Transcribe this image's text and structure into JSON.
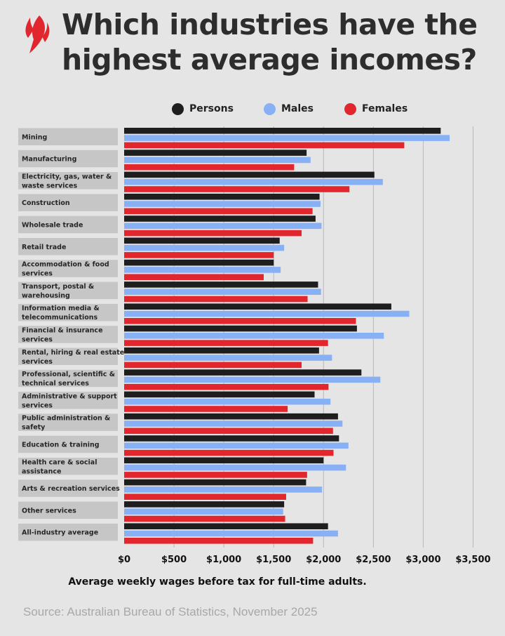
{
  "title": "Which industries have the highest average incomes?",
  "source": "Source: Australian Bureau of Statistics, November 2025",
  "colors": {
    "persons": "#1e1e1f",
    "males": "#88b1f5",
    "females": "#e2262d",
    "category_bg": "#c6c6c7",
    "gridline": "#b8b8ba"
  },
  "logo_icon": "sbs-flame-logo",
  "chart_data": {
    "type": "bar",
    "orientation": "horizontal",
    "title": "Which industries have the highest average incomes?",
    "xlabel": "Average weekly wages before tax for full-time adults.",
    "ylabel": "",
    "xlim": [
      0,
      3500
    ],
    "xticks": [
      0,
      500,
      1000,
      1500,
      2000,
      2500,
      3000,
      3500
    ],
    "xtick_labels": [
      "$0",
      "$500",
      "$1,000",
      "$1,500",
      "$2,000",
      "$2,500",
      "$3,000",
      "$3,500"
    ],
    "grid": true,
    "legend_position": "top",
    "categories": [
      "Mining",
      "Manufacturing",
      "Electricity, gas, water & waste services",
      "Construction",
      "Wholesale trade",
      "Retail trade",
      "Accommodation & food services",
      "Transport, postal & warehousing",
      "Information media & telecommunications",
      "Financial & insurance services",
      "Rental, hiring & real estate services",
      "Professional, scientific & technical services",
      "Administrative & support services",
      "Public administration & safety",
      "Education & training",
      "Health care & social assistance",
      "Arts & recreation services",
      "Other services",
      "All-industry average"
    ],
    "category_lines": [
      [
        "Mining"
      ],
      [
        "Manufacturing"
      ],
      [
        "Electricity, gas, water &",
        "waste services"
      ],
      [
        "Construction"
      ],
      [
        "Wholesale trade"
      ],
      [
        "Retail trade"
      ],
      [
        "Accommodation & food",
        "services"
      ],
      [
        "Transport, postal &",
        "warehousing"
      ],
      [
        "Information media &",
        "telecommunications"
      ],
      [
        "Financial & insurance",
        "services"
      ],
      [
        "Rental, hiring & real estate",
        "services"
      ],
      [
        "Professional, scientific &",
        "technical services"
      ],
      [
        "Administrative & support",
        "services"
      ],
      [
        "Public administration &",
        "safety"
      ],
      [
        "Education & training"
      ],
      [
        "Health care & social",
        "assistance"
      ],
      [
        "Arts & recreation services"
      ],
      [
        "Other services"
      ],
      [
        "All-industry average"
      ]
    ],
    "series": [
      {
        "name": "Persons",
        "color": "#1e1e1f",
        "values": [
          3175,
          1830,
          2510,
          1960,
          1920,
          1560,
          1500,
          1945,
          2680,
          2335,
          1955,
          2380,
          1910,
          2145,
          2155,
          2000,
          1825,
          1605,
          2045
        ]
      },
      {
        "name": "Males",
        "color": "#88b1f5",
        "values": [
          3265,
          1870,
          2595,
          1970,
          1980,
          1605,
          1570,
          1975,
          2860,
          2605,
          2085,
          2570,
          2070,
          2190,
          2250,
          2225,
          1985,
          1595,
          2145
        ]
      },
      {
        "name": "Females",
        "color": "#e2262d",
        "values": [
          2810,
          1705,
          2260,
          1890,
          1780,
          1500,
          1400,
          1840,
          2325,
          2045,
          1780,
          2050,
          1640,
          2095,
          2100,
          1835,
          1625,
          1615,
          1895
        ]
      }
    ]
  }
}
